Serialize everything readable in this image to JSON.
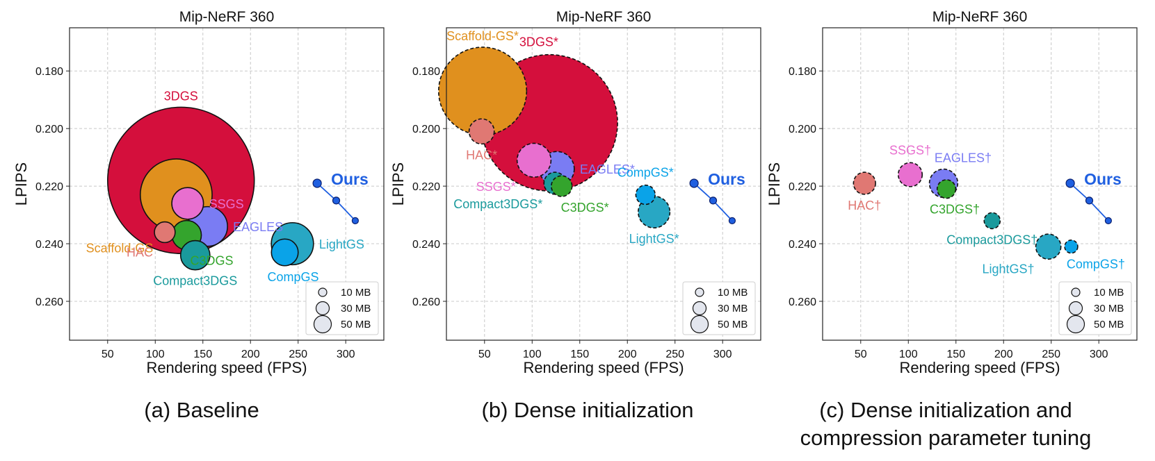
{
  "colors": {
    "3DGS": "#d40f3c",
    "Scaffold-GS": "#e0901e",
    "SSGS": "#e86fcf",
    "EAGLES": "#7a7cf3",
    "HAC": "#e07873",
    "C3DGS": "#34a42d",
    "Compact3DGS": "#1a9a9c",
    "LightGS": "#28a7c4",
    "CompGS": "#0aa3e8",
    "Ours": "#1f5fe0"
  },
  "captions": {
    "a": "(a) Baseline",
    "b": "(b) Dense initialization",
    "c_line1": "(c)  Dense initialization and",
    "c_line2": "compression parameter tuning"
  },
  "chart_data": [
    {
      "type": "scatter",
      "title": "Mip-NeRF 360",
      "xlabel": "Rendering speed (FPS)",
      "ylabel": "LPIPS",
      "xlim": [
        10,
        340
      ],
      "ylim": [
        0.2735,
        0.165
      ],
      "x_ticks": [
        50,
        100,
        150,
        200,
        250,
        300
      ],
      "y_ticks": [
        "0.180",
        "0.200",
        "0.220",
        "0.240",
        "0.260"
      ],
      "grid": true,
      "legend": {
        "position": "bottom-right",
        "entries": [
          "10 MB",
          "30 MB",
          "50 MB"
        ],
        "sizes_mb": [
          10,
          30,
          50
        ]
      },
      "points": [
        {
          "name": "3DGS",
          "label": "3DGS",
          "x": 127,
          "y": 0.218,
          "size_mb": 750,
          "dashed": false,
          "label_pos": "top"
        },
        {
          "name": "Scaffold-GS",
          "label": "Scaffold-GS",
          "x": 122,
          "y": 0.223,
          "size_mb": 180,
          "dashed": false,
          "label_pos": "far-left"
        },
        {
          "name": "SSGS",
          "label": "SSGS",
          "x": 134,
          "y": 0.226,
          "size_mb": 35,
          "dashed": false,
          "label_pos": "right"
        },
        {
          "name": "EAGLES",
          "label": "EAGLES",
          "x": 155,
          "y": 0.234,
          "size_mb": 55,
          "dashed": false,
          "label_pos": "right"
        },
        {
          "name": "HAC",
          "label": "HAC",
          "x": 110,
          "y": 0.236,
          "size_mb": 15,
          "dashed": false,
          "label_pos": "below-left"
        },
        {
          "name": "C3DGS",
          "label": "C3DGS",
          "x": 133,
          "y": 0.237,
          "size_mb": 30,
          "dashed": false,
          "label_pos": "below-right"
        },
        {
          "name": "Compact3DGS",
          "label": "Compact3DGS",
          "x": 142,
          "y": 0.244,
          "size_mb": 30,
          "dashed": false,
          "label_pos": "below"
        },
        {
          "name": "LightGS",
          "label": "LightGS",
          "x": 244,
          "y": 0.24,
          "size_mb": 62,
          "dashed": false,
          "label_pos": "right"
        },
        {
          "name": "CompGS",
          "label": "CompGS",
          "x": 236,
          "y": 0.243,
          "size_mb": 25,
          "dashed": false,
          "label_pos": "below-center"
        }
      ],
      "ours": {
        "label": "Ours",
        "x": [
          270,
          290,
          310
        ],
        "y": [
          0.219,
          0.225,
          0.232
        ]
      }
    },
    {
      "type": "scatter",
      "title": "Mip-NeRF 360",
      "xlabel": "Rendering speed (FPS)",
      "ylabel": "LPIPS",
      "xlim": [
        10,
        340
      ],
      "ylim": [
        0.2735,
        0.165
      ],
      "x_ticks": [
        50,
        100,
        150,
        200,
        250,
        300
      ],
      "y_ticks": [
        "0.180",
        "0.200",
        "0.220",
        "0.240",
        "0.260"
      ],
      "grid": true,
      "legend": {
        "position": "bottom-right",
        "entries": [
          "10 MB",
          "30 MB",
          "50 MB"
        ],
        "sizes_mb": [
          10,
          30,
          50
        ]
      },
      "points": [
        {
          "name": "Scaffold-GS",
          "label": "Scaffold-GS*",
          "x": 48,
          "y": 0.187,
          "size_mb": 270,
          "dashed": true,
          "label_pos": "top"
        },
        {
          "name": "3DGS",
          "label": "3DGS*",
          "x": 118,
          "y": 0.198,
          "size_mb": 650,
          "dashed": true,
          "label_pos": "top-right"
        },
        {
          "name": "HAC",
          "label": "HAC*",
          "x": 47,
          "y": 0.201,
          "size_mb": 22,
          "dashed": true,
          "label_pos": "below"
        },
        {
          "name": "SSGS",
          "label": "SSGS*",
          "x": 102,
          "y": 0.211,
          "size_mb": 40,
          "dashed": true,
          "label_pos": "below-left"
        },
        {
          "name": "EAGLES",
          "label": "EAGLES*",
          "x": 126,
          "y": 0.214,
          "size_mb": 42,
          "dashed": true,
          "label_pos": "right"
        },
        {
          "name": "C3DGS",
          "label": "C3DGS*",
          "x": 131,
          "y": 0.22,
          "size_mb": 15,
          "dashed": true,
          "label_pos": "below-right"
        },
        {
          "name": "Compact3DGS",
          "label": "Compact3DGS*",
          "x": 124,
          "y": 0.219,
          "size_mb": 17,
          "dashed": true,
          "label_pos": "below-left"
        },
        {
          "name": "CompGS",
          "label": "CompGS*",
          "x": 219,
          "y": 0.223,
          "size_mb": 13,
          "dashed": true,
          "label_pos": "above"
        },
        {
          "name": "LightGS",
          "label": "LightGS*",
          "x": 228,
          "y": 0.229,
          "size_mb": 35,
          "dashed": true,
          "label_pos": "below"
        }
      ],
      "ours": {
        "label": "Ours",
        "x": [
          270,
          290,
          310
        ],
        "y": [
          0.219,
          0.225,
          0.232
        ]
      }
    },
    {
      "type": "scatter",
      "title": "Mip-NeRF 360",
      "xlabel": "Rendering speed (FPS)",
      "ylabel": "LPIPS",
      "xlim": [
        10,
        340
      ],
      "ylim": [
        0.2735,
        0.165
      ],
      "x_ticks": [
        50,
        100,
        150,
        200,
        250,
        300
      ],
      "y_ticks": [
        "0.180",
        "0.200",
        "0.220",
        "0.240",
        "0.260"
      ],
      "grid": true,
      "legend": {
        "position": "bottom-right",
        "entries": [
          "10 MB",
          "30 MB",
          "50 MB"
        ],
        "sizes_mb": [
          10,
          30,
          50
        ]
      },
      "points": [
        {
          "name": "HAC",
          "label": "HAC†",
          "x": 54,
          "y": 0.219,
          "size_mb": 17,
          "dashed": true,
          "label_pos": "below"
        },
        {
          "name": "SSGS",
          "label": "SSGS†",
          "x": 102,
          "y": 0.216,
          "size_mb": 20,
          "dashed": true,
          "label_pos": "above"
        },
        {
          "name": "EAGLES",
          "label": "EAGLES†",
          "x": 137,
          "y": 0.219,
          "size_mb": 28,
          "dashed": true,
          "label_pos": "above-right"
        },
        {
          "name": "C3DGS",
          "label": "C3DGS†",
          "x": 140,
          "y": 0.221,
          "size_mb": 12,
          "dashed": true,
          "label_pos": "below-center"
        },
        {
          "name": "Compact3DGS",
          "label": "Compact3DGS†",
          "x": 188,
          "y": 0.232,
          "size_mb": 9,
          "dashed": true,
          "label_pos": "below"
        },
        {
          "name": "LightGS",
          "label": "LightGS†",
          "x": 247,
          "y": 0.241,
          "size_mb": 22,
          "dashed": true,
          "label_pos": "below-left"
        },
        {
          "name": "CompGS",
          "label": "CompGS†",
          "x": 271,
          "y": 0.241,
          "size_mb": 6,
          "dashed": true,
          "label_pos": "below-right"
        }
      ],
      "ours": {
        "label": "Ours",
        "x": [
          270,
          290,
          310
        ],
        "y": [
          0.219,
          0.225,
          0.232
        ]
      }
    }
  ]
}
